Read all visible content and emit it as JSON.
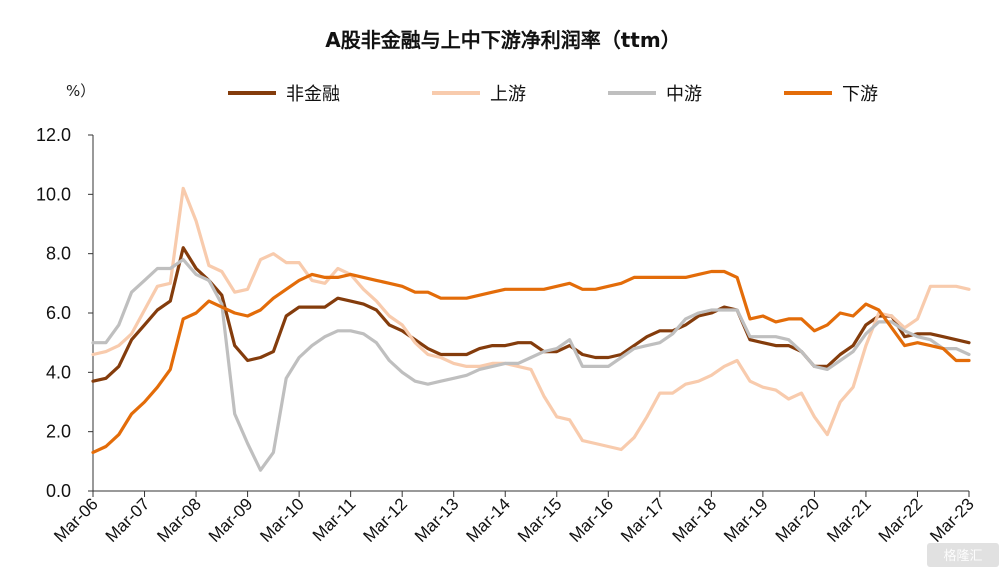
{
  "chart_data": {
    "type": "line",
    "title": "A股非金融与上中下游净利润率（ttm）",
    "unit_label": "%）",
    "ylim": [
      0,
      12
    ],
    "yticks": [
      "0.0",
      "2.0",
      "4.0",
      "6.0",
      "8.0",
      "10.0",
      "12.0"
    ],
    "xticks": [
      "Mar-06",
      "Mar-07",
      "Mar-08",
      "Mar-09",
      "Mar-10",
      "Mar-11",
      "Mar-12",
      "Mar-13",
      "Mar-14",
      "Mar-15",
      "Mar-16",
      "Mar-17",
      "Mar-18",
      "Mar-19",
      "Mar-20",
      "Mar-21",
      "Mar-22",
      "Mar-23"
    ],
    "grid": false,
    "legend_position": "top",
    "series": [
      {
        "name": "非金融",
        "color": "#843C0C",
        "values": [
          3.7,
          3.8,
          4.2,
          5.1,
          5.6,
          6.1,
          6.4,
          8.2,
          7.5,
          7.1,
          6.6,
          4.9,
          4.4,
          4.5,
          4.7,
          5.9,
          6.2,
          6.2,
          6.2,
          6.5,
          6.4,
          6.3,
          6.1,
          5.6,
          5.4,
          5.1,
          4.8,
          4.6,
          4.6,
          4.6,
          4.8,
          4.9,
          4.9,
          5.0,
          5.0,
          4.7,
          4.7,
          4.9,
          4.6,
          4.5,
          4.5,
          4.6,
          4.9,
          5.2,
          5.4,
          5.4,
          5.6,
          5.9,
          6.0,
          6.2,
          6.1,
          5.1,
          5.0,
          4.9,
          4.9,
          4.7,
          4.2,
          4.2,
          4.6,
          4.9,
          5.6,
          5.9,
          5.9,
          5.2,
          5.3,
          5.3,
          5.2,
          5.1,
          5.0
        ]
      },
      {
        "name": "上游",
        "color": "#F8CBAD",
        "values": [
          4.6,
          4.7,
          4.9,
          5.3,
          6.1,
          6.9,
          7.0,
          10.2,
          9.1,
          7.6,
          7.4,
          6.7,
          6.8,
          7.8,
          8.0,
          7.7,
          7.7,
          7.1,
          7.0,
          7.5,
          7.3,
          6.8,
          6.4,
          5.9,
          5.6,
          5.0,
          4.6,
          4.5,
          4.3,
          4.2,
          4.2,
          4.3,
          4.3,
          4.2,
          4.1,
          3.2,
          2.5,
          2.4,
          1.7,
          1.6,
          1.5,
          1.4,
          1.8,
          2.5,
          3.3,
          3.3,
          3.6,
          3.7,
          3.9,
          4.2,
          4.4,
          3.7,
          3.5,
          3.4,
          3.1,
          3.3,
          2.5,
          1.9,
          3.0,
          3.5,
          4.9,
          6.0,
          5.9,
          5.5,
          5.8,
          6.9,
          6.9,
          6.9,
          6.8
        ]
      },
      {
        "name": "中游",
        "color": "#BFBFBF",
        "values": [
          5.0,
          5.0,
          5.6,
          6.7,
          7.1,
          7.5,
          7.5,
          7.8,
          7.3,
          7.1,
          6.3,
          2.6,
          1.6,
          0.7,
          1.3,
          3.8,
          4.5,
          4.9,
          5.2,
          5.4,
          5.4,
          5.3,
          5.0,
          4.4,
          4.0,
          3.7,
          3.6,
          3.7,
          3.8,
          3.9,
          4.1,
          4.2,
          4.3,
          4.3,
          4.5,
          4.7,
          4.8,
          5.1,
          4.2,
          4.2,
          4.2,
          4.5,
          4.8,
          4.9,
          5.0,
          5.3,
          5.8,
          6.0,
          6.1,
          6.1,
          6.1,
          5.2,
          5.2,
          5.2,
          5.1,
          4.7,
          4.2,
          4.1,
          4.4,
          4.7,
          5.3,
          5.7,
          5.7,
          5.4,
          5.2,
          5.1,
          4.8,
          4.8,
          4.6
        ]
      },
      {
        "name": "下游",
        "color": "#E36C09",
        "values": [
          1.3,
          1.5,
          1.9,
          2.6,
          3.0,
          3.5,
          4.1,
          5.8,
          6.0,
          6.4,
          6.2,
          6.0,
          5.9,
          6.1,
          6.5,
          6.8,
          7.1,
          7.3,
          7.2,
          7.2,
          7.3,
          7.2,
          7.1,
          7.0,
          6.9,
          6.7,
          6.7,
          6.5,
          6.5,
          6.5,
          6.6,
          6.7,
          6.8,
          6.8,
          6.8,
          6.8,
          6.9,
          7.0,
          6.8,
          6.8,
          6.9,
          7.0,
          7.2,
          7.2,
          7.2,
          7.2,
          7.2,
          7.3,
          7.4,
          7.4,
          7.2,
          5.8,
          5.9,
          5.7,
          5.8,
          5.8,
          5.4,
          5.6,
          6.0,
          5.9,
          6.3,
          6.1,
          5.5,
          4.9,
          5.0,
          4.9,
          4.8,
          4.4,
          4.4
        ]
      }
    ]
  },
  "watermark": "格隆汇"
}
